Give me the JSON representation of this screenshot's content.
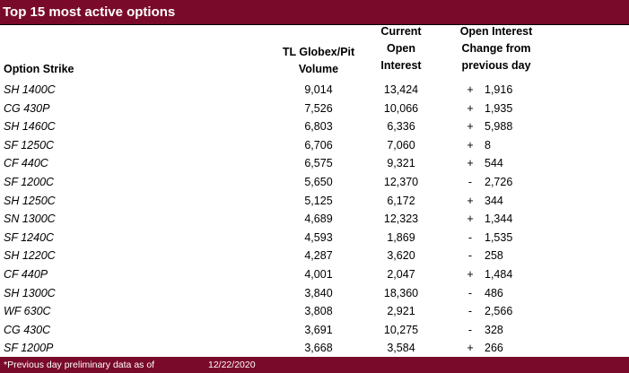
{
  "title": "Top 15 most active options",
  "headers": {
    "strike": "Option Strike",
    "volume": [
      "TL Globex/Pit",
      "Volume"
    ],
    "open_interest": [
      "Current",
      "Open",
      "Interest"
    ],
    "change": [
      "Open Interest",
      "Change from",
      "previous day"
    ]
  },
  "rows": [
    {
      "strike": "SH 1400C",
      "volume": "9,014",
      "oi": "13,424",
      "sign": "+",
      "change": "1,916"
    },
    {
      "strike": "CG 430P",
      "volume": "7,526",
      "oi": "10,066",
      "sign": "+",
      "change": "1,935"
    },
    {
      "strike": "SH 1460C",
      "volume": "6,803",
      "oi": "6,336",
      "sign": "+",
      "change": "5,988"
    },
    {
      "strike": "SF 1250C",
      "volume": "6,706",
      "oi": "7,060",
      "sign": "+",
      "change": "8"
    },
    {
      "strike": "CF 440C",
      "volume": "6,575",
      "oi": "9,321",
      "sign": "+",
      "change": "544"
    },
    {
      "strike": "SF 1200C",
      "volume": "5,650",
      "oi": "12,370",
      "sign": "-",
      "change": "2,726"
    },
    {
      "strike": "SH 1250C",
      "volume": "5,125",
      "oi": "6,172",
      "sign": "+",
      "change": "344"
    },
    {
      "strike": "SN 1300C",
      "volume": "4,689",
      "oi": "12,323",
      "sign": "+",
      "change": "1,344"
    },
    {
      "strike": "SF 1240C",
      "volume": "4,593",
      "oi": "1,869",
      "sign": "-",
      "change": "1,535"
    },
    {
      "strike": "SH 1220C",
      "volume": "4,287",
      "oi": "3,620",
      "sign": "-",
      "change": "258"
    },
    {
      "strike": "CF 440P",
      "volume": "4,001",
      "oi": "2,047",
      "sign": "+",
      "change": "1,484"
    },
    {
      "strike": "SH 1300C",
      "volume": "3,840",
      "oi": "18,360",
      "sign": "-",
      "change": "486"
    },
    {
      "strike": "WF 630C",
      "volume": "3,808",
      "oi": "2,921",
      "sign": "-",
      "change": "2,566"
    },
    {
      "strike": "CG 430C",
      "volume": "3,691",
      "oi": "10,275",
      "sign": "-",
      "change": "328"
    },
    {
      "strike": "SF 1200P",
      "volume": "3,668",
      "oi": "3,584",
      "sign": "+",
      "change": "266"
    }
  ],
  "footer": {
    "note": "*Previous day preliminary data as of",
    "date": "12/22/2020"
  },
  "colors": {
    "band": "#7a0a2a"
  }
}
